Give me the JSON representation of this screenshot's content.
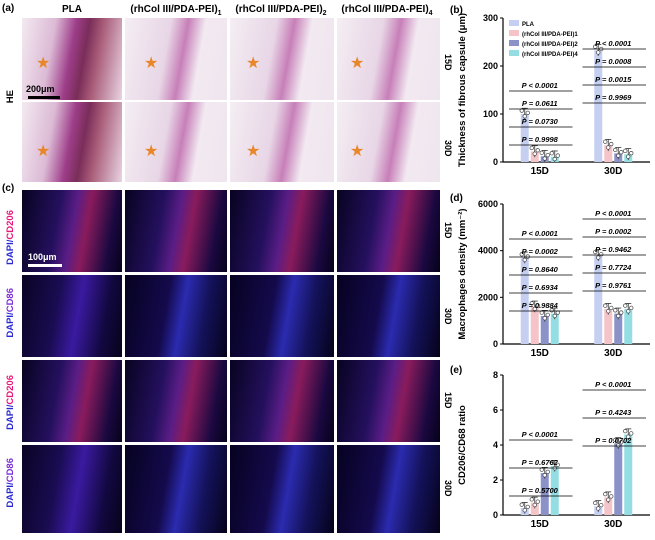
{
  "panels": {
    "a": "(a)",
    "b": "(b)",
    "c": "(c)",
    "d": "(d)",
    "e": "(e)"
  },
  "columns": [
    "PLA",
    "(rhCol III/PDA-PEI)",
    "(rhCol III/PDA-PEI)",
    "(rhCol III/PDA-PEI)"
  ],
  "column_subs": [
    "",
    "1",
    "2",
    "4"
  ],
  "row_labels": {
    "he": "HE",
    "cd206": "CD206",
    "cd86": "CD86",
    "dapi": "DAPI/"
  },
  "days": {
    "d15": "15D",
    "d30": "30D"
  },
  "scale_bars": {
    "he": "200μm",
    "fl": "100μm"
  },
  "colors": {
    "PLA": "#c5cff2",
    "L1": "#f4c4c8",
    "L2": "#8a92c8",
    "L4": "#93dde3",
    "cd206": "#e8177a",
    "cd86": "#7b2fd6",
    "star": "#e8862a"
  },
  "chart_data": [
    {
      "type": "bar",
      "panel": "b",
      "ylabel": "Thickness of fibrous capsule (μm)",
      "categories": [
        "15D",
        "30D"
      ],
      "ylim": [
        0,
        300
      ],
      "yticks": [
        "0",
        "100",
        "200",
        "300"
      ],
      "series": [
        {
          "name": "PLA",
          "values": [
            100,
            233
          ]
        },
        {
          "name": "(rhCol III/PDA-PEI)1",
          "values": [
            22,
            35
          ]
        },
        {
          "name": "(rhCol III/PDA-PEI)2",
          "values": [
            12,
            18
          ]
        },
        {
          "name": "(rhCol III/PDA-PEI)4",
          "values": [
            11,
            16
          ]
        }
      ],
      "legend": [
        "PLA",
        "(rhCol III/PDA-PEI)",
        "(rhCol III/PDA-PEI)",
        "(rhCol III/PDA-PEI)"
      ],
      "pvalues": {
        "g15": [
          "P < 0.0001",
          "P = 0.0611",
          "P = 0.0730",
          "P = 0.9998"
        ],
        "g30": [
          "P < 0.0001",
          "P = 0.0008",
          "P = 0.0015",
          "P = 0.9969"
        ]
      }
    },
    {
      "type": "bar",
      "panel": "d",
      "ylabel": "Macrophages density (mm⁻²)",
      "categories": [
        "15D",
        "30D"
      ],
      "ylim": [
        0,
        6000
      ],
      "yticks": [
        "0",
        "2000",
        "4000",
        "6000"
      ],
      "series": [
        {
          "name": "PLA",
          "values": [
            3700,
            3800
          ]
        },
        {
          "name": "(rhCol III/PDA-PEI)1",
          "values": [
            1600,
            1500
          ]
        },
        {
          "name": "(rhCol III/PDA-PEI)2",
          "values": [
            1200,
            1300
          ]
        },
        {
          "name": "(rhCol III/PDA-PEI)4",
          "values": [
            1300,
            1500
          ]
        }
      ],
      "pvalues": {
        "g15": [
          "P < 0.0001",
          "P = 0.0002",
          "P = 0.8640",
          "P = 0.6934",
          "P = 0.9884"
        ],
        "g30": [
          "P < 0.0001",
          "P = 0.0002",
          "P = 0.9462",
          "P = 0.7724",
          "P = 0.9761"
        ]
      }
    },
    {
      "type": "bar",
      "panel": "e",
      "ylabel": "CD206/CD68 ratio",
      "categories": [
        "15D",
        "30D"
      ],
      "ylim": [
        0,
        8
      ],
      "yticks": [
        "0",
        "2",
        "4",
        "6",
        "8"
      ],
      "series": [
        {
          "name": "PLA",
          "values": [
            0.4,
            0.5
          ]
        },
        {
          "name": "(rhCol III/PDA-PEI)1",
          "values": [
            0.7,
            1.0
          ]
        },
        {
          "name": "(rhCol III/PDA-PEI)2",
          "values": [
            2.4,
            4.1
          ]
        },
        {
          "name": "(rhCol III/PDA-PEI)4",
          "values": [
            2.8,
            4.6
          ]
        }
      ],
      "pvalues": {
        "g15": [
          "P < 0.0001",
          "P = 0.6762",
          "P = 0.5700"
        ],
        "g30": [
          "P < 0.0001",
          "P = 0.4243",
          "P = 0.0702"
        ]
      }
    }
  ]
}
